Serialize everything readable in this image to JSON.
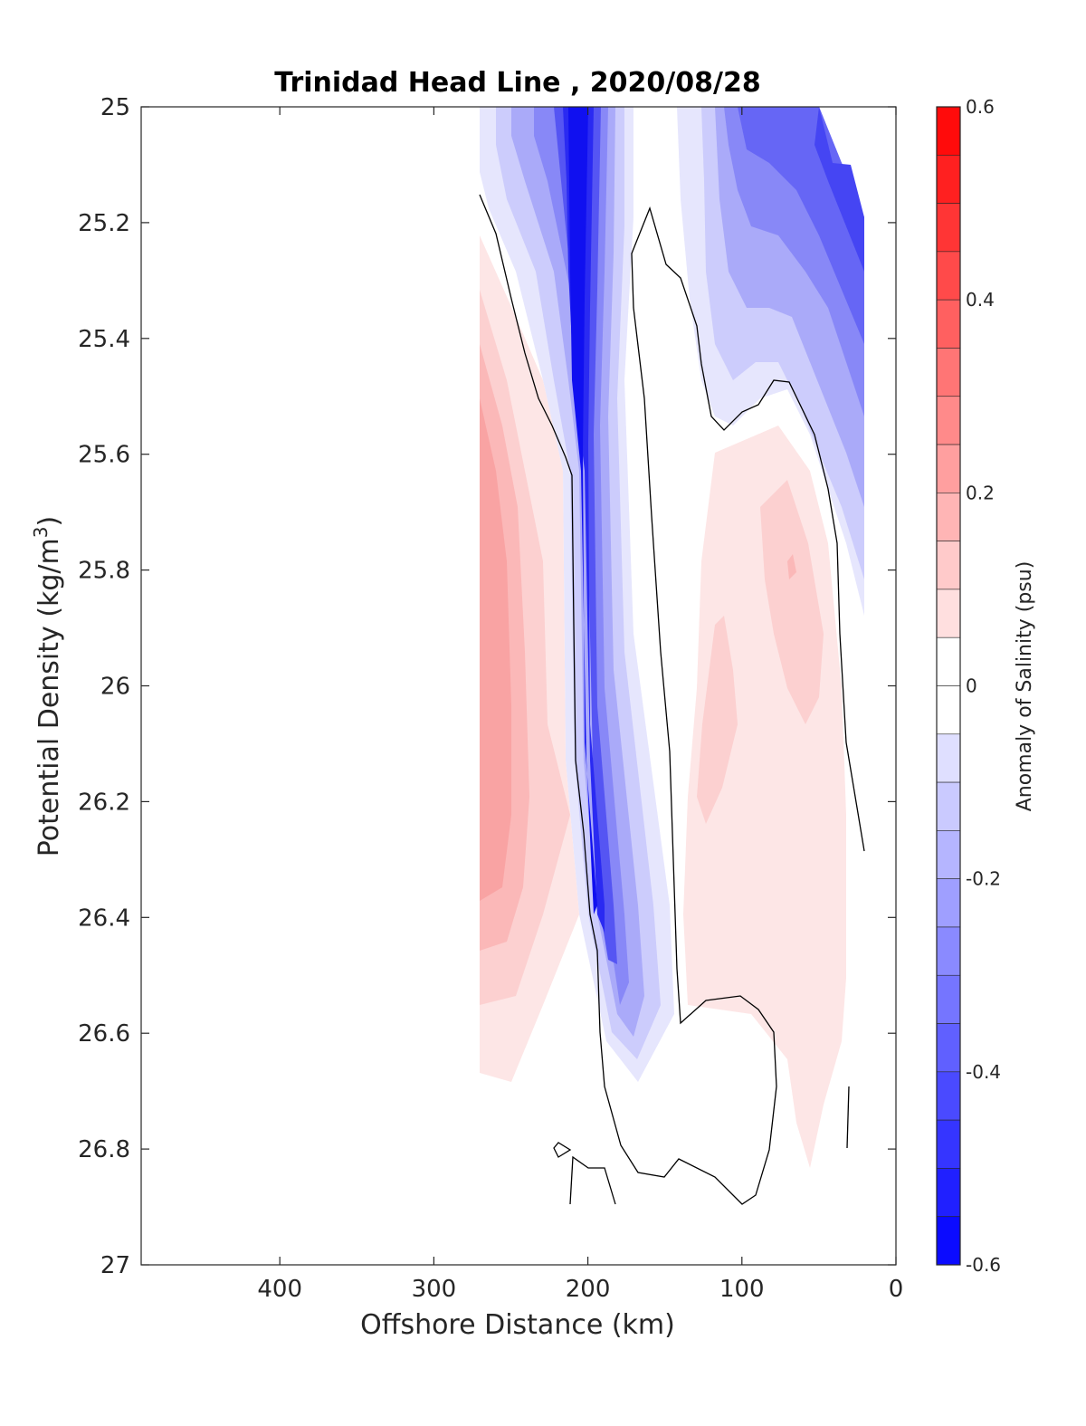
{
  "chart_data": {
    "type": "heatmap",
    "title": "Trinidad Head Line , 2020/08/28",
    "xlabel": "Offshore Distance (km)",
    "ylabel": "Potential Density (kg/m3)",
    "ylabel_main": "Potential Density (kg/m",
    "ylabel_sup": "3",
    "ylabel_close": ")",
    "xlim": [
      490,
      0
    ],
    "x_reversed": true,
    "ylim": [
      25,
      27
    ],
    "y_reversed": true,
    "xticks": [
      400,
      300,
      200,
      100,
      0
    ],
    "xtick_labels": [
      "400",
      "300",
      "200",
      "100",
      "0"
    ],
    "yticks": [
      25,
      25.2,
      25.4,
      25.6,
      25.8,
      26,
      26.2,
      26.4,
      26.6,
      26.8,
      27
    ],
    "ytick_labels": [
      "25",
      "25.2",
      "25.4",
      "25.6",
      "25.8",
      "26",
      "26.2",
      "26.4",
      "26.6",
      "26.8",
      "27"
    ],
    "colorbar": {
      "label": "Anomaly of Salinity (psu)",
      "range": [
        -0.6,
        0.6
      ],
      "levels_step": 0.05,
      "tick_values": [
        0.6,
        0.4,
        0.2,
        0,
        -0.2,
        -0.4,
        -0.6
      ],
      "tick_labels": [
        "0.6",
        "0.4",
        "0.2",
        "0",
        "-0.2",
        "-0.4",
        "-0.6"
      ],
      "colors": {
        "negative": "#0000ff",
        "zero": "#ffffff",
        "positive": "#ff0000"
      }
    },
    "features": [
      {
        "name": "low-salinity core",
        "x": [
          200,
          220
        ],
        "y": [
          25.0,
          26.6
        ],
        "value": -0.55
      },
      {
        "name": "nearshore fresh lens",
        "x": [
          20,
          100
        ],
        "y": [
          25.0,
          25.7
        ],
        "value": -0.3
      },
      {
        "name": "offshore salty band",
        "x": [
          230,
          270
        ],
        "y": [
          25.4,
          26.7
        ],
        "value": 0.25
      },
      {
        "name": "nearshore salty patch",
        "x": [
          40,
          130
        ],
        "y": [
          25.6,
          26.8
        ],
        "value": 0.12
      }
    ],
    "zero_contour": "black"
  }
}
